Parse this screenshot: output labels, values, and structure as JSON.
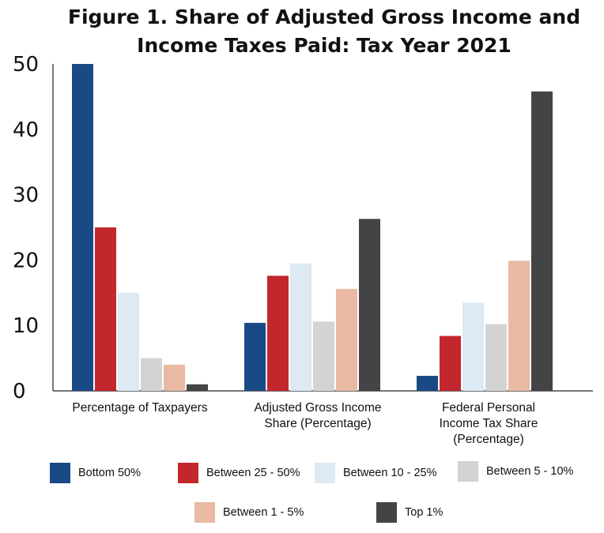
{
  "chart_data": {
    "type": "bar",
    "title_lines": [
      "Figure 1. Share of Adjusted Gross Income and",
      "Income Taxes Paid: Tax Year 2021"
    ],
    "categories": [
      [
        "Percentage of Taxpayers"
      ],
      [
        "Adjusted Gross Income",
        "Share (Percentage)"
      ],
      [
        "Federal Personal",
        "Income Tax Share",
        "(Percentage)"
      ]
    ],
    "y_ticks": [
      "0",
      "10",
      "20",
      "30",
      "40",
      "50"
    ],
    "ylim": [
      0,
      50
    ],
    "grid": false,
    "legend_position": "bottom",
    "series": [
      {
        "name": "Bottom 50%",
        "color": "#1a4a86",
        "values": [
          50,
          10.4,
          2.3
        ]
      },
      {
        "name": "Between 25 - 50%",
        "color": "#c1272d",
        "values": [
          25,
          17.6,
          8.4
        ]
      },
      {
        "name": "Between 10 - 25%",
        "color": "#dde9f3",
        "values": [
          15,
          19.5,
          13.5
        ]
      },
      {
        "name": "Between 5 - 10%",
        "color": "#d3d3d3",
        "values": [
          5,
          10.6,
          10.2
        ]
      },
      {
        "name": "Between 1 - 5%",
        "color": "#e9b9a3",
        "values": [
          4,
          15.6,
          19.9
        ]
      },
      {
        "name": "Top 1%",
        "color": "#444446",
        "values": [
          1,
          26.3,
          45.8
        ]
      }
    ]
  }
}
